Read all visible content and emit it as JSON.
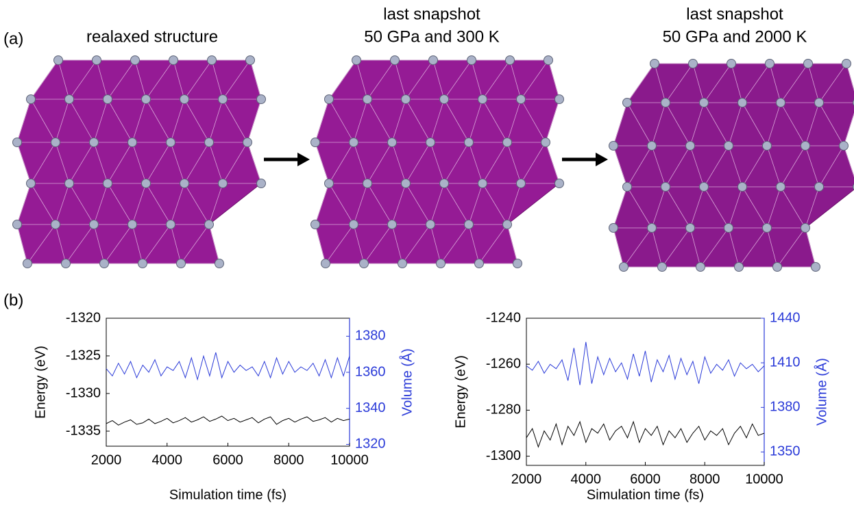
{
  "panel_labels": [
    "(a)",
    "(b)"
  ],
  "structures": [
    {
      "title": [
        "realaxed structure"
      ]
    },
    {
      "title": [
        "last snapshot",
        "50 GPa and 300 K"
      ]
    },
    {
      "title": [
        "last snapshot",
        "50 GPa and 2000 K"
      ]
    }
  ],
  "chart_data": [
    {
      "type": "line",
      "xlabel": "Simulation time (fs)",
      "ylabel": "Energy (eV)",
      "y2label": "Volume (Å)",
      "x": [
        2000,
        2200,
        2400,
        2600,
        2800,
        3000,
        3200,
        3400,
        3600,
        3800,
        4000,
        4200,
        4400,
        4600,
        4800,
        5000,
        5200,
        5400,
        5600,
        5800,
        6000,
        6200,
        6400,
        6600,
        6800,
        7000,
        7200,
        7400,
        7600,
        7800,
        8000,
        8200,
        8400,
        8600,
        8800,
        9000,
        9200,
        9400,
        9600,
        9800,
        10000
      ],
      "xlim": [
        2000,
        10000
      ],
      "xticks": [
        2000,
        4000,
        6000,
        8000,
        10000
      ],
      "ylim": [
        -1337,
        -1320
      ],
      "yticks": [
        -1335,
        -1330,
        -1325,
        -1320
      ],
      "y2lim": [
        1319,
        1390
      ],
      "y2ticks": [
        1320,
        1340,
        1360,
        1380
      ],
      "series": [
        {
          "color": "#000000",
          "values": [
            -1334.0,
            -1333.6,
            -1334.2,
            -1333.8,
            -1333.5,
            -1334.1,
            -1333.9,
            -1333.4,
            -1334.0,
            -1333.7,
            -1333.3,
            -1333.9,
            -1333.6,
            -1333.2,
            -1333.8,
            -1333.5,
            -1333.1,
            -1333.7,
            -1333.4,
            -1333.0,
            -1333.6,
            -1333.3,
            -1333.8,
            -1333.5,
            -1333.2,
            -1333.9,
            -1333.4,
            -1333.1,
            -1334.1,
            -1333.6,
            -1333.3,
            -1333.8,
            -1333.4,
            -1333.1,
            -1333.7,
            -1333.5,
            -1333.2,
            -1333.8,
            -1333.3,
            -1333.6,
            -1333.4
          ]
        },
        {
          "color": "#2a3ad8",
          "axis": "y2",
          "values": [
            1362,
            1358,
            1365,
            1359,
            1366,
            1357,
            1364,
            1360,
            1367,
            1358,
            1363,
            1361,
            1366,
            1357,
            1368,
            1356,
            1369,
            1358,
            1371,
            1357,
            1366,
            1360,
            1364,
            1361,
            1363,
            1358,
            1366,
            1357,
            1368,
            1359,
            1366,
            1360,
            1363,
            1361,
            1365,
            1358,
            1367,
            1357,
            1368,
            1358,
            1369
          ]
        }
      ]
    },
    {
      "type": "line",
      "xlabel": "Simulation time (fs)",
      "ylabel": "Energy (eV)",
      "y2label": "Volume (Å)",
      "x": [
        2000,
        2200,
        2400,
        2600,
        2800,
        3000,
        3200,
        3400,
        3600,
        3800,
        4000,
        4200,
        4400,
        4600,
        4800,
        5000,
        5200,
        5400,
        5600,
        5800,
        6000,
        6200,
        6400,
        6600,
        6800,
        7000,
        7200,
        7400,
        7600,
        7800,
        8000,
        8200,
        8400,
        8600,
        8800,
        9000,
        9200,
        9400,
        9600,
        9800,
        10000
      ],
      "xlim": [
        2000,
        10000
      ],
      "xticks": [
        2000,
        4000,
        6000,
        8000,
        10000
      ],
      "ylim": [
        -1304,
        -1240
      ],
      "yticks": [
        -1300,
        -1280,
        -1260,
        -1240
      ],
      "y2lim": [
        1341,
        1440
      ],
      "y2ticks": [
        1350,
        1380,
        1410,
        1440
      ],
      "series": [
        {
          "color": "#000000",
          "values": [
            -1292,
            -1288,
            -1296,
            -1289,
            -1293,
            -1286,
            -1295,
            -1287,
            -1291,
            -1285,
            -1294,
            -1288,
            -1290,
            -1286,
            -1293,
            -1289,
            -1287,
            -1292,
            -1285,
            -1294,
            -1288,
            -1291,
            -1287,
            -1295,
            -1289,
            -1292,
            -1288,
            -1294,
            -1290,
            -1287,
            -1293,
            -1289,
            -1291,
            -1288,
            -1295,
            -1290,
            -1287,
            -1292,
            -1286,
            -1291,
            -1290
          ]
        },
        {
          "color": "#2a3ad8",
          "axis": "y2",
          "values": [
            1408,
            1405,
            1411,
            1403,
            1409,
            1406,
            1412,
            1398,
            1420,
            1395,
            1424,
            1396,
            1414,
            1402,
            1413,
            1404,
            1410,
            1399,
            1416,
            1401,
            1418,
            1397,
            1412,
            1404,
            1415,
            1399,
            1413,
            1402,
            1411,
            1396,
            1414,
            1403,
            1409,
            1405,
            1412,
            1401,
            1410,
            1406,
            1409,
            1404,
            1408
          ]
        }
      ]
    }
  ]
}
